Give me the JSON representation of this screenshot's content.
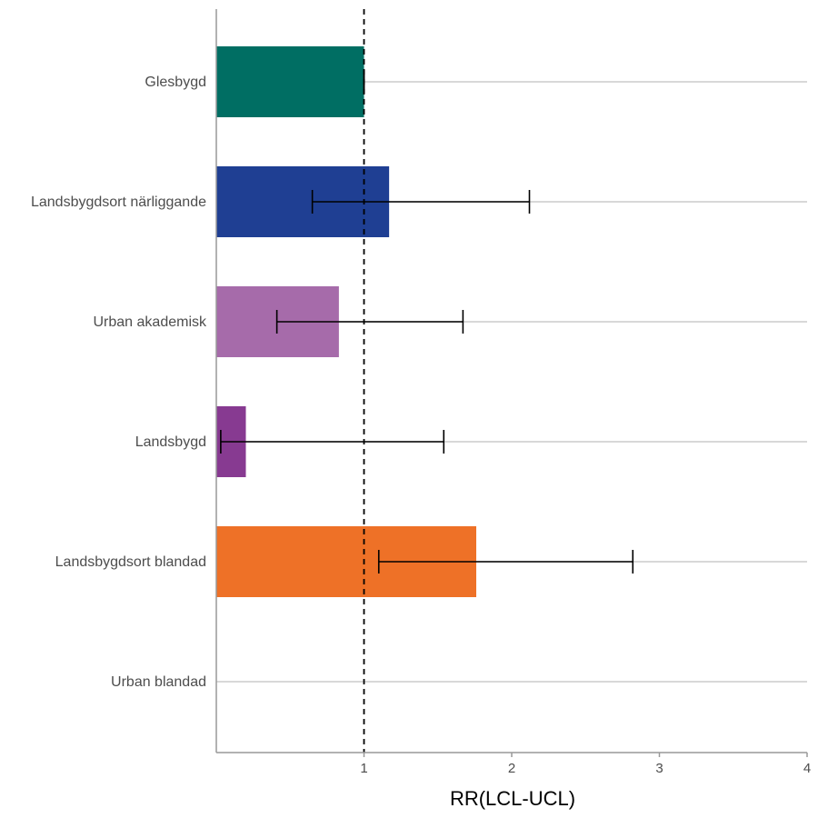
{
  "chart_data": {
    "type": "bar",
    "orientation": "horizontal",
    "categories": [
      "Glesbygd",
      "Landsbygdsort närliggande",
      "Urban akademisk",
      "Landsbygd",
      "Landsbygdsort blandad",
      "Urban blandad"
    ],
    "values": [
      1.0,
      1.17,
      0.83,
      0.2,
      1.76,
      null
    ],
    "lcl": [
      1.0,
      0.65,
      0.41,
      0.03,
      1.1,
      null
    ],
    "ucl": [
      1.0,
      2.12,
      1.67,
      1.54,
      2.82,
      null
    ],
    "colors": [
      "#006e63",
      "#1f3f93",
      "#a66baa",
      "#873a91",
      "#ee7127",
      null
    ],
    "xlabel": "RR(LCL-UCL)",
    "ylabel": "",
    "xlim": [
      0,
      4
    ],
    "x_ticks": [
      1,
      2,
      3,
      4
    ],
    "reference_line": 1,
    "grid": "horizontal lines at categories",
    "legend": "none"
  }
}
